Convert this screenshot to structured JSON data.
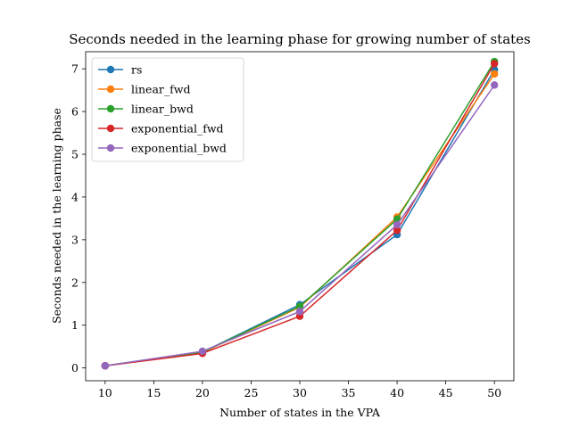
{
  "chart_data": {
    "type": "line",
    "title": "Seconds needed in the learning phase for growing number of states",
    "xlabel": "Number of states in the VPA",
    "ylabel": "Seconds needed in the learning phase",
    "xlim": [
      8,
      52
    ],
    "ylim": [
      -0.3,
      7.4
    ],
    "xticks": [
      10,
      15,
      20,
      25,
      30,
      35,
      40,
      45,
      50
    ],
    "yticks": [
      0,
      1,
      2,
      3,
      4,
      5,
      6,
      7
    ],
    "xtick_labels": [
      "10",
      "15",
      "20",
      "25",
      "30",
      "35",
      "40",
      "45",
      "50"
    ],
    "ytick_labels": [
      "0",
      "1",
      "2",
      "3",
      "4",
      "5",
      "6",
      "7"
    ],
    "grid": false,
    "legend_position": "top-left",
    "x": [
      10,
      20,
      30,
      40,
      50
    ],
    "series": [
      {
        "name": "rs",
        "color": "#1f77b4",
        "values": [
          0.05,
          0.37,
          1.48,
          3.12,
          6.98
        ]
      },
      {
        "name": "linear_fwd",
        "color": "#ff7f0e",
        "values": [
          0.05,
          0.36,
          1.42,
          3.53,
          6.88
        ]
      },
      {
        "name": "linear_bwd",
        "color": "#2ca02c",
        "values": [
          0.05,
          0.37,
          1.44,
          3.48,
          7.17
        ]
      },
      {
        "name": "exponential_fwd",
        "color": "#d62728",
        "values": [
          0.05,
          0.34,
          1.21,
          3.22,
          7.12
        ]
      },
      {
        "name": "exponential_bwd",
        "color": "#9467bd",
        "values": [
          0.05,
          0.39,
          1.32,
          3.35,
          6.62
        ]
      }
    ]
  }
}
